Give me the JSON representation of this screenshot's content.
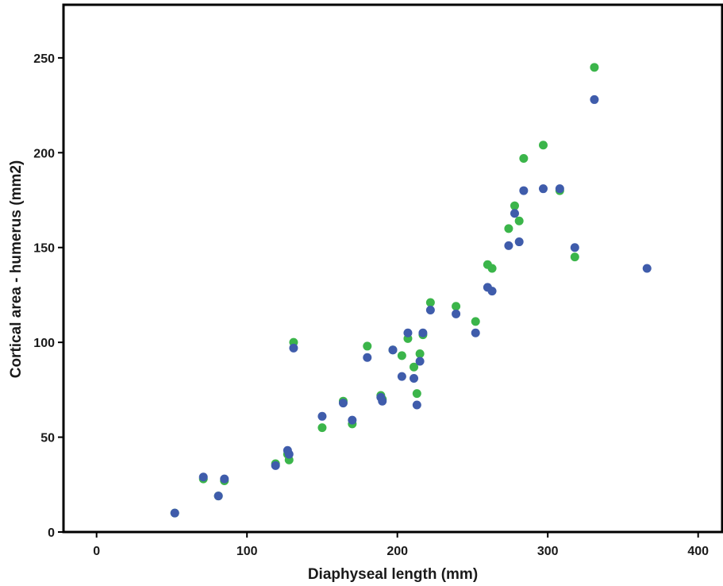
{
  "chart_data": {
    "type": "scatter",
    "title": "",
    "xlabel": "Diaphyseal length (mm)",
    "ylabel": "Cortical area - humerus (mm2)",
    "xlim": [
      -22,
      416
    ],
    "ylim": [
      0,
      278
    ],
    "x_ticks": [
      0,
      100,
      200,
      300,
      400
    ],
    "y_ticks": [
      0,
      50,
      100,
      150,
      200,
      250
    ],
    "grid": false,
    "legend": "none",
    "series": [
      {
        "color": "#3bb54a",
        "points": [
          [
            52,
            10
          ],
          [
            71,
            28
          ],
          [
            81,
            19
          ],
          [
            85,
            27
          ],
          [
            119,
            36
          ],
          [
            127,
            41
          ],
          [
            128,
            38
          ],
          [
            131,
            100
          ],
          [
            150,
            55
          ],
          [
            164,
            69
          ],
          [
            170,
            57
          ],
          [
            180,
            98
          ],
          [
            189,
            72
          ],
          [
            190,
            70
          ],
          [
            197,
            96
          ],
          [
            203,
            93
          ],
          [
            207,
            102
          ],
          [
            211,
            87
          ],
          [
            213,
            73
          ],
          [
            215,
            94
          ],
          [
            217,
            104
          ],
          [
            222,
            121
          ],
          [
            239,
            119
          ],
          [
            252,
            111
          ],
          [
            260,
            141
          ],
          [
            263,
            139
          ],
          [
            274,
            160
          ],
          [
            278,
            172
          ],
          [
            281,
            164
          ],
          [
            284,
            197
          ],
          [
            297,
            204
          ],
          [
            308,
            180
          ],
          [
            318,
            145
          ],
          [
            331,
            245
          ]
        ]
      },
      {
        "color": "#3f5cab",
        "points": [
          [
            52,
            10
          ],
          [
            71,
            29
          ],
          [
            81,
            19
          ],
          [
            85,
            28
          ],
          [
            119,
            35
          ],
          [
            127,
            43
          ],
          [
            128,
            41
          ],
          [
            131,
            97
          ],
          [
            150,
            61
          ],
          [
            164,
            68
          ],
          [
            170,
            59
          ],
          [
            180,
            92
          ],
          [
            189,
            71
          ],
          [
            190,
            69
          ],
          [
            197,
            96
          ],
          [
            203,
            82
          ],
          [
            207,
            105
          ],
          [
            211,
            81
          ],
          [
            213,
            67
          ],
          [
            215,
            90
          ],
          [
            217,
            105
          ],
          [
            222,
            117
          ],
          [
            239,
            115
          ],
          [
            252,
            105
          ],
          [
            260,
            129
          ],
          [
            263,
            127
          ],
          [
            274,
            151
          ],
          [
            278,
            168
          ],
          [
            281,
            153
          ],
          [
            284,
            180
          ],
          [
            297,
            181
          ],
          [
            308,
            181
          ],
          [
            318,
            150
          ],
          [
            331,
            228
          ],
          [
            366,
            139
          ]
        ]
      }
    ]
  }
}
